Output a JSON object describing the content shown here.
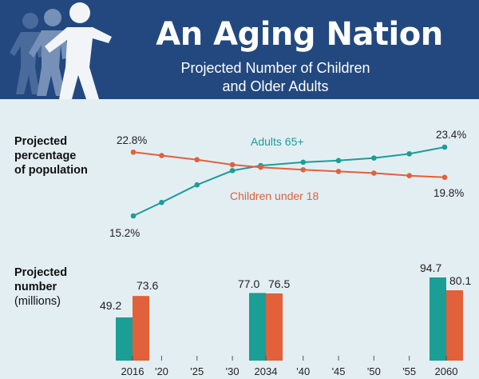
{
  "header": {
    "title": "An Aging Nation",
    "subtitle_line1": "Projected Number of Children",
    "subtitle_line2": "and Older Adults"
  },
  "labels": {
    "percentage": [
      "Projected",
      "percentage",
      "of population"
    ],
    "number": [
      "Projected",
      "number",
      "(millions)"
    ]
  },
  "colors": {
    "adults": "#1a9e96",
    "children": "#e2603a",
    "banner": "#22487f",
    "background": "#e3eef3"
  },
  "chart_data": [
    {
      "type": "line",
      "x": [
        2016,
        2020,
        2025,
        2030,
        2034,
        2040,
        2045,
        2050,
        2055,
        2060
      ],
      "series": [
        {
          "name": "Adults 65+",
          "color": "#1a9e96",
          "values": [
            15.2,
            16.8,
            18.9,
            20.6,
            21.2,
            21.6,
            21.8,
            22.1,
            22.6,
            23.4
          ],
          "value_labels": {
            "first": "15.2%",
            "last": "23.4%"
          }
        },
        {
          "name": "Children under 18",
          "color": "#e2603a",
          "values": [
            22.8,
            22.4,
            21.9,
            21.3,
            21.0,
            20.7,
            20.5,
            20.3,
            20.0,
            19.8
          ],
          "value_labels": {
            "first": "22.8%",
            "last": "19.8%"
          }
        }
      ],
      "ylim": [
        14.5,
        24
      ]
    },
    {
      "type": "bar",
      "categories": [
        "2016",
        "2034",
        "2060"
      ],
      "series": [
        {
          "name": "Adults 65+",
          "color": "#1a9e96",
          "values": [
            49.2,
            77.0,
            94.7
          ],
          "labels": [
            "49.2",
            "77.0",
            "94.7"
          ]
        },
        {
          "name": "Children under 18",
          "color": "#e2603a",
          "values": [
            73.6,
            76.5,
            80.1
          ],
          "labels": [
            "73.6",
            "76.5",
            "80.1"
          ]
        }
      ],
      "x_ticks": [
        "2016",
        "'20",
        "'25",
        "'30",
        "2034",
        "'40",
        "'45",
        "'50",
        "'55",
        "2060"
      ],
      "ylim": [
        0,
        100
      ]
    }
  ]
}
